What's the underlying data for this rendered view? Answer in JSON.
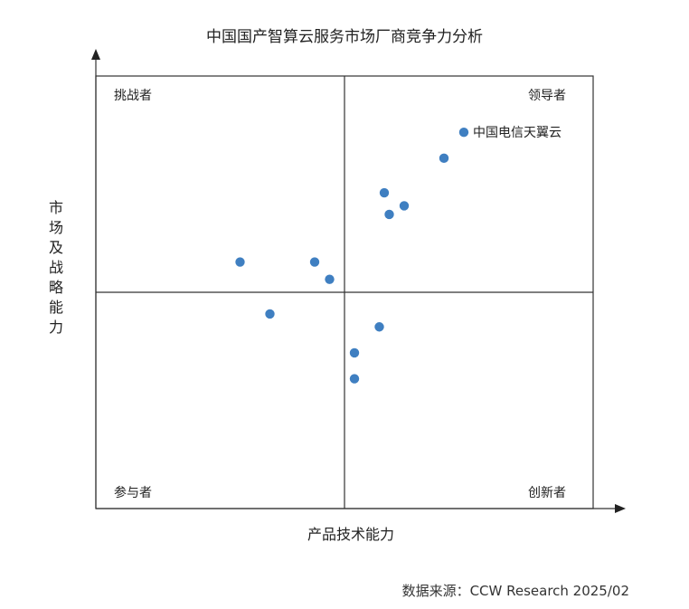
{
  "chart_data": {
    "type": "scatter",
    "title": "中国国产智算云服务市场厂商竞争力分析",
    "xlabel": "产品技术能力",
    "ylabel": "市场及战略能力",
    "quadrants": {
      "top_left": "挑战者",
      "top_right": "领导者",
      "bottom_left": "参与者",
      "bottom_right": "创新者"
    },
    "xlim": [
      0,
      100
    ],
    "ylim": [
      0,
      100
    ],
    "grid": false,
    "point_color": "#3f7fc1",
    "points": [
      {
        "x": 74,
        "y": 87,
        "label": "中国电信天翼云"
      },
      {
        "x": 70,
        "y": 81,
        "label": ""
      },
      {
        "x": 58,
        "y": 73,
        "label": ""
      },
      {
        "x": 62,
        "y": 70,
        "label": ""
      },
      {
        "x": 59,
        "y": 68,
        "label": ""
      },
      {
        "x": 29,
        "y": 57,
        "label": ""
      },
      {
        "x": 44,
        "y": 57,
        "label": ""
      },
      {
        "x": 47,
        "y": 53,
        "label": ""
      },
      {
        "x": 35,
        "y": 45,
        "label": ""
      },
      {
        "x": 57,
        "y": 42,
        "label": ""
      },
      {
        "x": 52,
        "y": 36,
        "label": ""
      },
      {
        "x": 52,
        "y": 30,
        "label": ""
      }
    ]
  },
  "source": "数据来源：CCW Research 2025/02"
}
